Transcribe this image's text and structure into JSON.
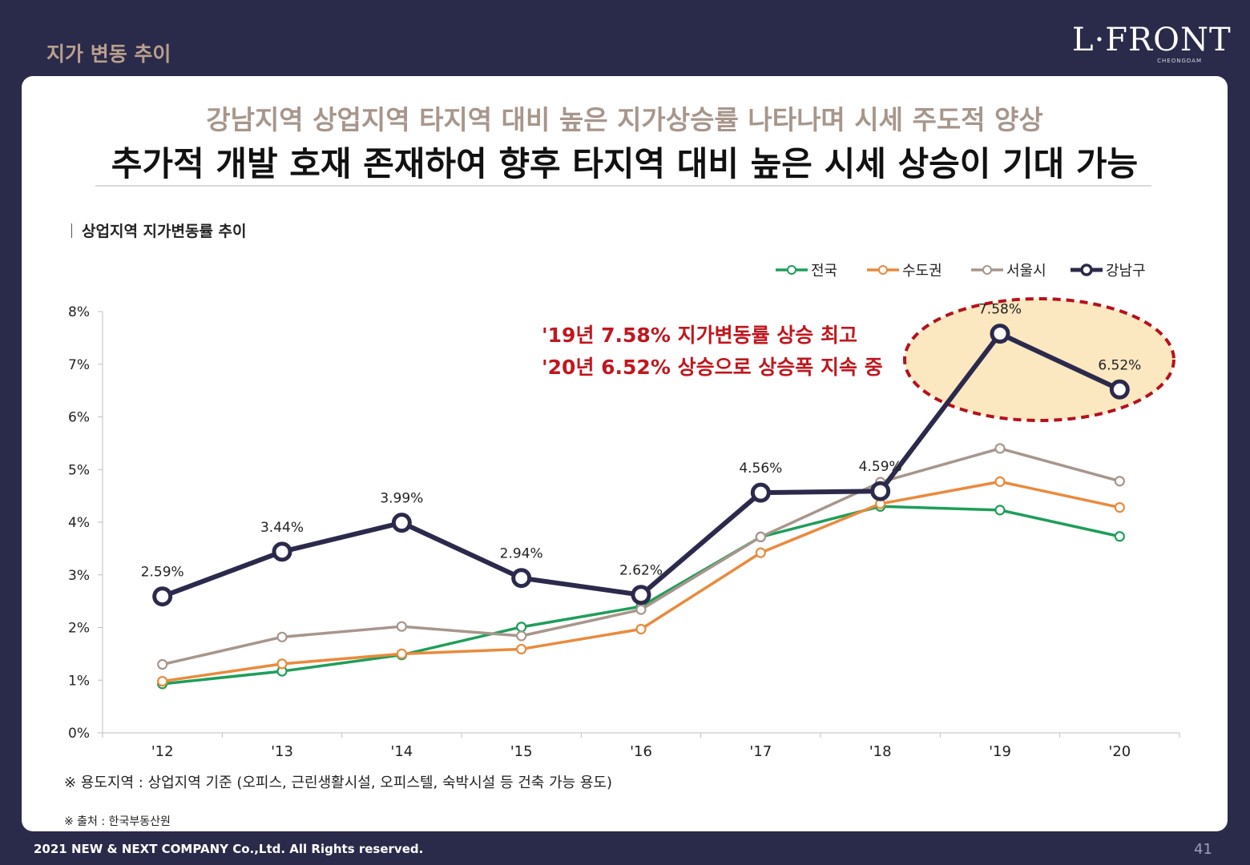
{
  "header": {
    "section_title": "지가 변동 추이",
    "brand_name": "L·FRONT",
    "brand_sub": "CHEONGDAM"
  },
  "headline": {
    "line1": "강남지역 상업지역 타지역 대비 높은 지가상승률 나타나며 시세 주도적 양상",
    "line2": "추가적 개발 호재 존재하여 향후 타지역 대비 높은 시세 상승이 기대 가능"
  },
  "chart_label": "상업지역 지가변동률 추이",
  "chart_data": {
    "type": "line",
    "categories": [
      "'12",
      "'13",
      "'14",
      "'15",
      "'16",
      "'17",
      "'18",
      "'19",
      "'20"
    ],
    "ylim": [
      0,
      8
    ],
    "yticks": [
      "0%",
      "1%",
      "2%",
      "3%",
      "4%",
      "5%",
      "6%",
      "7%",
      "8%"
    ],
    "legend_position": "top-right",
    "series": [
      {
        "name": "전국",
        "color": "#1e9e5a",
        "values": [
          0.93,
          1.17,
          1.48,
          2.01,
          2.4,
          3.72,
          4.3,
          4.23,
          3.73
        ]
      },
      {
        "name": "수도권",
        "color": "#ea8a3c",
        "values": [
          0.98,
          1.31,
          1.5,
          1.59,
          1.97,
          3.42,
          4.35,
          4.77,
          4.28
        ]
      },
      {
        "name": "서울시",
        "color": "#a8968b",
        "values": [
          1.3,
          1.82,
          2.02,
          1.84,
          2.34,
          3.72,
          4.76,
          5.4,
          4.78
        ]
      },
      {
        "name": "강남구",
        "color": "#2b2a4c",
        "values": [
          2.59,
          3.44,
          3.99,
          2.94,
          2.62,
          4.56,
          4.59,
          7.58,
          6.52
        ],
        "labels": [
          "2.59%",
          "3.44%",
          "3.99%",
          "2.94%",
          "2.62%",
          "4.56%",
          "4.59%",
          "7.58%",
          "6.52%"
        ]
      }
    ],
    "annotation": {
      "lines": [
        "'19년 7.58% 지가변동률 상승 최고",
        "'20년 6.52% 상승으로 상승폭 지속 중"
      ],
      "color": "#c0171e",
      "highlight_fill": "#fbe7c0",
      "highlight_stroke": "#b5111c"
    }
  },
  "notes": {
    "usage": "※ 용도지역 : 상업지역 기준 (오피스, 근린생활시설, 오피스텔, 숙박시설 등 건축 가능 용도)",
    "source": "※ 출처 : 한국부동산원"
  },
  "footer": {
    "copyright": "2021 NEW & NEXT COMPANY Co.,Ltd. All Rights reserved.",
    "page": "41"
  }
}
